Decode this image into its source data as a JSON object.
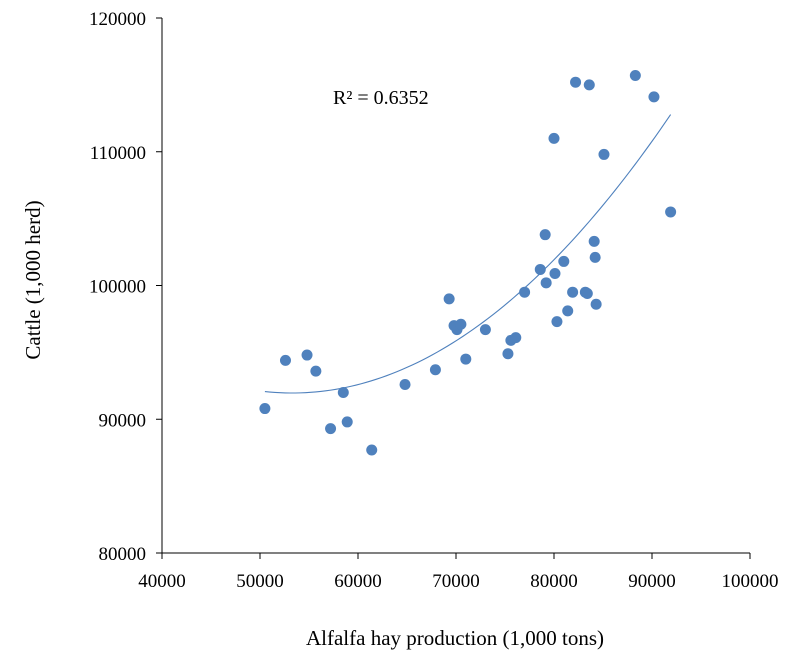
{
  "chart_data": {
    "type": "scatter",
    "title": "",
    "xlabel": "Alfalfa hay production (1,000 tons)",
    "ylabel": "Cattle (1,000 herd)",
    "xlim": [
      40000,
      100000
    ],
    "ylim": [
      80000,
      120000
    ],
    "x_ticks": [
      40000,
      50000,
      60000,
      70000,
      80000,
      90000,
      100000
    ],
    "y_ticks": [
      80000,
      90000,
      100000,
      110000,
      120000
    ],
    "x_tick_labels": [
      "40000",
      "50000",
      "60000",
      "70000",
      "80000",
      "90000",
      "100000"
    ],
    "y_tick_labels": [
      "80000",
      "90000",
      "100000",
      "110000",
      "120000"
    ],
    "grid": false,
    "legend": "none",
    "annotation": "R² = 0.6352",
    "colors": {
      "points": "#4f81bd",
      "trendline": "#4f81bd",
      "axes": "#000000"
    },
    "points": [
      {
        "x": 50500,
        "y": 90800
      },
      {
        "x": 52600,
        "y": 94400
      },
      {
        "x": 54800,
        "y": 94800
      },
      {
        "x": 55700,
        "y": 93600
      },
      {
        "x": 57200,
        "y": 89300
      },
      {
        "x": 58500,
        "y": 92000
      },
      {
        "x": 58900,
        "y": 89800
      },
      {
        "x": 61400,
        "y": 87700
      },
      {
        "x": 64800,
        "y": 92600
      },
      {
        "x": 67900,
        "y": 93700
      },
      {
        "x": 69300,
        "y": 99000
      },
      {
        "x": 69800,
        "y": 97000
      },
      {
        "x": 70100,
        "y": 96700
      },
      {
        "x": 70500,
        "y": 97100
      },
      {
        "x": 71000,
        "y": 94500
      },
      {
        "x": 73000,
        "y": 96700
      },
      {
        "x": 75300,
        "y": 94900
      },
      {
        "x": 75600,
        "y": 95900
      },
      {
        "x": 76100,
        "y": 96100
      },
      {
        "x": 77000,
        "y": 99500
      },
      {
        "x": 78600,
        "y": 101200
      },
      {
        "x": 79100,
        "y": 103800
      },
      {
        "x": 79200,
        "y": 100200
      },
      {
        "x": 80000,
        "y": 111000
      },
      {
        "x": 80100,
        "y": 100900
      },
      {
        "x": 80300,
        "y": 97300
      },
      {
        "x": 81000,
        "y": 101800
      },
      {
        "x": 81400,
        "y": 98100
      },
      {
        "x": 81900,
        "y": 99500
      },
      {
        "x": 82200,
        "y": 115200
      },
      {
        "x": 83200,
        "y": 99500
      },
      {
        "x": 83400,
        "y": 99400
      },
      {
        "x": 83600,
        "y": 115000
      },
      {
        "x": 84100,
        "y": 103300
      },
      {
        "x": 84200,
        "y": 102100
      },
      {
        "x": 84300,
        "y": 98600
      },
      {
        "x": 85100,
        "y": 109800
      },
      {
        "x": 88300,
        "y": 115700
      },
      {
        "x": 90200,
        "y": 114100
      },
      {
        "x": 91900,
        "y": 105500
      }
    ],
    "trendline": {
      "type": "polynomial-2",
      "x_range": [
        50500,
        91900
      ],
      "curve": [
        {
          "x": 50500,
          "y": 92070
        },
        {
          "x": 54000,
          "y": 91774
        },
        {
          "x": 60000,
          "y": 92512
        },
        {
          "x": 70000,
          "y": 95862
        },
        {
          "x": 80000,
          "y": 101812
        },
        {
          "x": 91900,
          "y": 112780
        }
      ]
    }
  }
}
